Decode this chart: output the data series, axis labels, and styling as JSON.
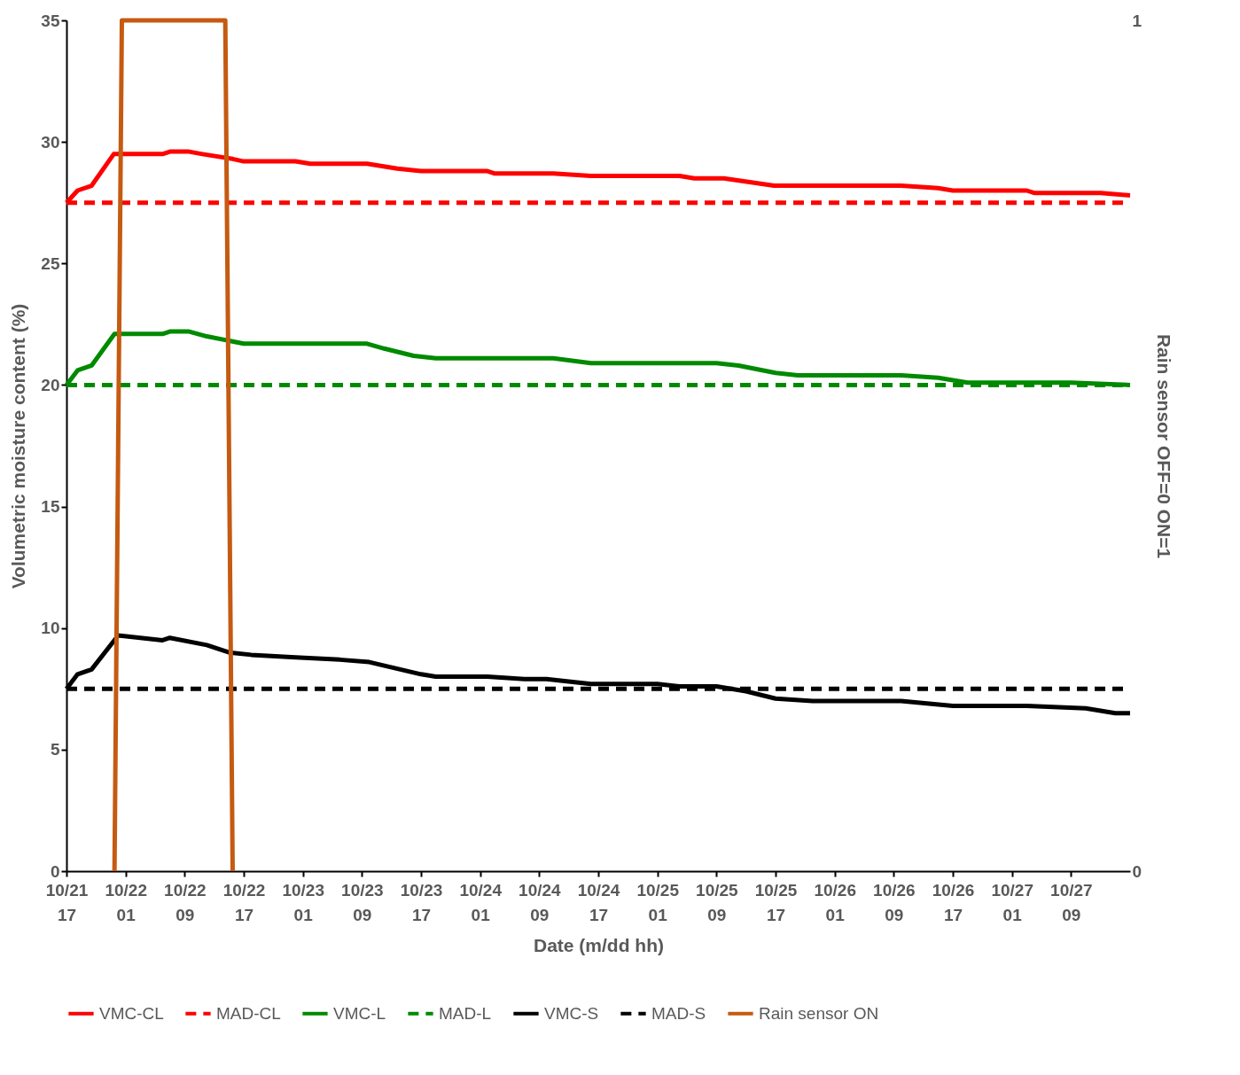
{
  "chart_data": {
    "type": "line",
    "xlabel": "Date (m/dd  hh)",
    "ylabel": "Volumetric moisture content (%)",
    "y2label": "Rain sensor      OFF=0      ON=1",
    "xlim": [
      "--10-21T17:00",
      "--10-27T17:00"
    ],
    "xticks": [
      {
        "value": "--10-21T17:00",
        "label": "10/21 17"
      },
      {
        "value": "--10-22T01:00",
        "label": "10/22 01"
      },
      {
        "value": "--10-22T09:00",
        "label": "10/22 09"
      },
      {
        "value": "--10-22T17:00",
        "label": "10/22 17"
      },
      {
        "value": "--10-23T01:00",
        "label": "10/23 01"
      },
      {
        "value": "--10-23T09:00",
        "label": "10/23 09"
      },
      {
        "value": "--10-23T17:00",
        "label": "10/23 17"
      },
      {
        "value": "--10-24T01:00",
        "label": "10/24 01"
      },
      {
        "value": "--10-24T09:00",
        "label": "10/24 09"
      },
      {
        "value": "--10-24T17:00",
        "label": "10/24 17"
      },
      {
        "value": "--10-25T01:00",
        "label": "10/25 01"
      },
      {
        "value": "--10-25T09:00",
        "label": "10/25 09"
      },
      {
        "value": "--10-25T17:00",
        "label": "10/25 17"
      },
      {
        "value": "--10-26T01:00",
        "label": "10/26 01"
      },
      {
        "value": "--10-26T09:00",
        "label": "10/26 09"
      },
      {
        "value": "--10-26T17:00",
        "label": "10/26 17"
      },
      {
        "value": "--10-27T01:00",
        "label": "10/27 01"
      },
      {
        "value": "--10-27T09:00",
        "label": "10/27 09"
      }
    ],
    "ylim": [
      0,
      35
    ],
    "yticks": [
      0,
      5,
      10,
      15,
      20,
      25,
      30,
      35
    ],
    "y2lim": [
      0,
      1
    ],
    "y2ticks": [
      0,
      1
    ],
    "legend": "bottom",
    "series": [
      {
        "name": "VMC-CL",
        "color": "#ff0000",
        "line_style": "solid",
        "x": [
          "--10-21T17:00",
          "--10-21T18:30",
          "--10-21T20:24",
          "--10-21T23:24",
          "--10-22T06:00",
          "--10-22T07:00",
          "--10-22T09:36",
          "--10-22T11:24",
          "--10-22T15:30",
          "--10-22T17:00",
          "--10-23T00:00",
          "--10-23T02:00",
          "--10-23T09:42",
          "--10-23T13:48",
          "--10-23T17:00",
          "--10-24T02:00",
          "--10-24T03:00",
          "--10-24T10:54",
          "--10-24T16:00",
          "--10-25T04:00",
          "--10-25T06:00",
          "--10-25T10:00",
          "--10-25T16:48",
          "--10-26T10:00",
          "--10-26T15:00",
          "--10-26T17:00",
          "--10-27T03:00",
          "--10-27T04:00",
          "--10-27T13:00",
          "--10-27T17:00"
        ],
        "values": [
          27.5,
          28,
          28.2,
          29.5,
          29.5,
          29.6,
          29.6,
          29.5,
          29.3,
          29.2,
          29.2,
          29.1,
          29.1,
          28.9,
          28.8,
          28.8,
          28.7,
          28.7,
          28.6,
          28.6,
          28.5,
          28.5,
          28.2,
          28.2,
          28.1,
          28,
          28,
          27.9,
          27.9,
          27.8
        ]
      },
      {
        "name": "MAD-CL",
        "color": "#ff0000",
        "line_style": "dashed",
        "x": [
          "--10-21T17:00",
          "--10-27T17:00"
        ],
        "values": [
          27.5,
          27.5
        ]
      },
      {
        "name": "VMC-L",
        "color": "#008a00",
        "line_style": "solid",
        "x": [
          "--10-21T17:00",
          "--10-21T18:30",
          "--10-21T20:24",
          "--10-21T23:30",
          "--10-22T06:00",
          "--10-22T07:00",
          "--10-22T09:36",
          "--10-22T12:00",
          "--10-22T17:00",
          "--10-23T09:42",
          "--10-23T12:00",
          "--10-23T16:00",
          "--10-23T19:00",
          "--10-24T10:54",
          "--10-24T16:00",
          "--10-25T09:00",
          "--10-25T12:00",
          "--10-25T17:00",
          "--10-25T20:00",
          "--10-26T10:00",
          "--10-26T15:00",
          "--10-26T19:00",
          "--10-27T09:00",
          "--10-27T17:00"
        ],
        "values": [
          20,
          20.6,
          20.8,
          22.1,
          22.1,
          22.2,
          22.2,
          22,
          21.7,
          21.7,
          21.5,
          21.2,
          21.1,
          21.1,
          20.9,
          20.9,
          20.8,
          20.5,
          20.4,
          20.4,
          20.3,
          20.1,
          20.1,
          20
        ]
      },
      {
        "name": "MAD-L",
        "color": "#008a00",
        "line_style": "dashed",
        "x": [
          "--10-21T17:00",
          "--10-27T17:00"
        ],
        "values": [
          20,
          20
        ]
      },
      {
        "name": "VMC-S",
        "color": "#000000",
        "line_style": "solid",
        "x": [
          "--10-21T17:00",
          "--10-21T18:30",
          "--10-21T20:24",
          "--10-22T00:00",
          "--10-22T06:00",
          "--10-22T07:00",
          "--10-22T12:00",
          "--10-22T15:00",
          "--10-22T18:00",
          "--10-23T00:00",
          "--10-23T06:00",
          "--10-23T10:00",
          "--10-23T17:00",
          "--10-23T19:00",
          "--10-24T02:00",
          "--10-24T07:00",
          "--10-24T10:00",
          "--10-24T16:00",
          "--10-25T01:00",
          "--10-25T04:00",
          "--10-25T09:00",
          "--10-25T13:00",
          "--10-25T17:00",
          "--10-25T22:00",
          "--10-26T10:00",
          "--10-26T17:00",
          "--10-27T03:00",
          "--10-27T11:00",
          "--10-27T15:00",
          "--10-27T17:00"
        ],
        "values": [
          7.5,
          8.1,
          8.3,
          9.7,
          9.5,
          9.6,
          9.3,
          9,
          8.9,
          8.8,
          8.7,
          8.6,
          8.1,
          8,
          8,
          7.9,
          7.9,
          7.7,
          7.7,
          7.6,
          7.6,
          7.4,
          7.1,
          7,
          7,
          6.8,
          6.8,
          6.7,
          6.5,
          6.5
        ]
      },
      {
        "name": "MAD-S",
        "color": "#000000",
        "line_style": "dashed",
        "x": [
          "--10-21T17:00",
          "--10-27T17:00"
        ],
        "values": [
          7.5,
          7.5
        ]
      },
      {
        "name": "Rain sensor ON",
        "color": "#c55a11",
        "line_style": "solid",
        "axis": "y2",
        "x": [
          "--10-21T23:30",
          "--10-22T00:30",
          "--10-22T14:30",
          "--10-22T15:30"
        ],
        "values": [
          0,
          1,
          1,
          0
        ]
      }
    ]
  }
}
